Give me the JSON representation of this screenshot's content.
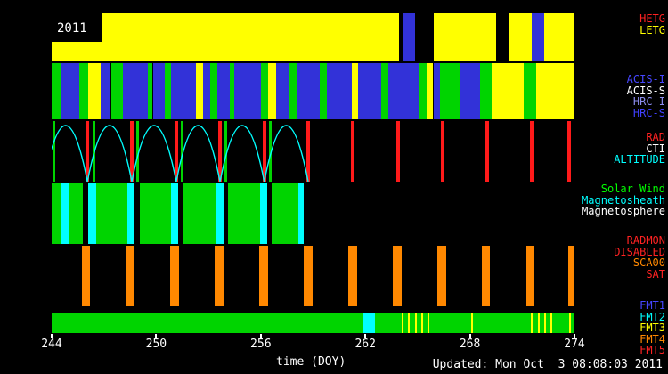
{
  "title_year": "2011",
  "footer": {
    "xlabel": "time (DOY)",
    "updated": "Updated: Mon Oct  3 08:08:03 2011"
  },
  "segment_colors": {
    "yellow": "#ffff00",
    "blue": "#3232d8",
    "green": "#00d400",
    "cyan": "#00ffff",
    "red": "#ff1a1a",
    "orange": "#ff8800",
    "white": "#ffffff"
  },
  "chart_data": {
    "type": "timeline-bands",
    "title": "2011",
    "xlabel": "time (DOY)",
    "x_axis": {
      "min": 244,
      "max": 274,
      "ticks": [
        244,
        250,
        256,
        262,
        268,
        274
      ]
    },
    "bands": [
      {
        "id": "gratings",
        "labels": [
          {
            "text": "HETG",
            "color": "#ff2222"
          },
          {
            "text": "LETG",
            "color": "#ffff00"
          }
        ],
        "segments": [
          [
            244.0,
            263.93,
            "yellow"
          ],
          [
            264.14,
            264.86,
            "blue"
          ],
          [
            265.93,
            269.5,
            "yellow"
          ],
          [
            270.22,
            271.54,
            "yellow"
          ],
          [
            271.54,
            272.26,
            "blue"
          ],
          [
            272.26,
            274.0,
            "yellow"
          ]
        ]
      },
      {
        "id": "instruments",
        "labels": [
          {
            "text": "ACIS-I",
            "color": "#4646ff"
          },
          {
            "text": "ACIS-S",
            "color": "#ffffff"
          },
          {
            "text": "HRC-I",
            "color": "#8c8cf0"
          },
          {
            "text": "HRC-S",
            "color": "#4040ff"
          }
        ],
        "segments": [
          [
            244.0,
            244.5,
            "green"
          ],
          [
            244.5,
            245.6,
            "blue"
          ],
          [
            245.6,
            246.1,
            "green"
          ],
          [
            246.1,
            246.8,
            "yellow"
          ],
          [
            246.8,
            247.4,
            "blue"
          ],
          [
            247.4,
            248.1,
            "green"
          ],
          [
            248.1,
            249.5,
            "blue"
          ],
          [
            249.5,
            249.8,
            "green"
          ],
          [
            249.8,
            250.5,
            "blue"
          ],
          [
            250.5,
            250.85,
            "green"
          ],
          [
            250.85,
            252.3,
            "blue"
          ],
          [
            252.3,
            252.7,
            "yellow"
          ],
          [
            252.7,
            253.1,
            "blue"
          ],
          [
            253.1,
            253.5,
            "green"
          ],
          [
            253.5,
            254.2,
            "blue"
          ],
          [
            254.2,
            254.5,
            "green"
          ],
          [
            254.5,
            256.0,
            "blue"
          ],
          [
            256.0,
            256.4,
            "green"
          ],
          [
            256.4,
            256.9,
            "yellow"
          ],
          [
            256.9,
            257.6,
            "blue"
          ],
          [
            257.6,
            258.05,
            "green"
          ],
          [
            258.05,
            259.4,
            "blue"
          ],
          [
            259.4,
            259.8,
            "green"
          ],
          [
            259.8,
            261.2,
            "blue"
          ],
          [
            261.2,
            261.6,
            "yellow"
          ],
          [
            261.6,
            262.9,
            "blue"
          ],
          [
            262.9,
            263.3,
            "green"
          ],
          [
            263.3,
            265.05,
            "blue"
          ],
          [
            265.05,
            265.5,
            "green"
          ],
          [
            265.5,
            265.9,
            "yellow"
          ],
          [
            265.9,
            266.3,
            "blue"
          ],
          [
            266.3,
            267.45,
            "green"
          ],
          [
            267.45,
            268.6,
            "blue"
          ],
          [
            268.6,
            269.25,
            "green"
          ],
          [
            269.25,
            271.1,
            "yellow"
          ],
          [
            271.1,
            271.8,
            "green"
          ],
          [
            271.8,
            274.0,
            "yellow"
          ]
        ]
      },
      {
        "id": "orbit",
        "labels": [
          {
            "text": "RAD",
            "color": "#ff2222"
          },
          {
            "text": "CTI",
            "color": "#ffffff"
          },
          {
            "text": "ALTITUDE",
            "color": "#00ffff"
          }
        ],
        "vlines": [
          {
            "color": "red",
            "w": 4,
            "xs": [
              246.05,
              248.6,
              251.15,
              253.66,
              256.2,
              258.72,
              261.27,
              263.88,
              266.44,
              269.0,
              271.55,
              273.7
            ]
          },
          {
            "color": "green",
            "w": 3,
            "xs": [
              244.15,
              246.4,
              248.95,
              251.5,
              254.0,
              256.55
            ]
          }
        ],
        "arcs": {
          "color": "cyan",
          "cusps": [
            243.55,
            246.05,
            248.6,
            251.15,
            253.66,
            256.2,
            258.72
          ]
        }
      },
      {
        "id": "wind",
        "labels": [
          {
            "text": "Solar Wind",
            "color": "#00ff00"
          },
          {
            "text": "Magnetosheath",
            "color": "#00ffff"
          },
          {
            "text": "Magnetosphere",
            "color": "#ffffff"
          }
        ],
        "segments": [
          [
            244.0,
            244.5,
            "green"
          ],
          [
            244.5,
            245.0,
            "cyan"
          ],
          [
            245.0,
            245.8,
            "green"
          ],
          [
            246.1,
            246.55,
            "cyan"
          ],
          [
            246.55,
            248.35,
            "green"
          ],
          [
            248.35,
            248.75,
            "cyan"
          ],
          [
            249.05,
            250.85,
            "green"
          ],
          [
            250.85,
            251.25,
            "cyan"
          ],
          [
            251.55,
            253.4,
            "green"
          ],
          [
            253.4,
            253.85,
            "cyan"
          ],
          [
            254.1,
            255.95,
            "green"
          ],
          [
            255.95,
            256.35,
            "cyan"
          ],
          [
            256.6,
            258.15,
            "green"
          ],
          [
            258.15,
            258.45,
            "cyan"
          ]
        ]
      },
      {
        "id": "radmon",
        "labels": [
          {
            "text": "RADMON",
            "color": "#ff2222"
          },
          {
            "text": "DISABLED",
            "color": "#ff2222"
          },
          {
            "text": "SCA00",
            "color": "#ff8800"
          },
          {
            "text": "SAT",
            "color": "#ff2222"
          }
        ],
        "segments": [
          [
            245.72,
            246.22,
            "orange"
          ],
          [
            248.27,
            248.77,
            "orange"
          ],
          [
            250.82,
            251.32,
            "orange"
          ],
          [
            253.37,
            253.87,
            "orange"
          ],
          [
            255.92,
            256.42,
            "orange"
          ],
          [
            258.47,
            258.97,
            "orange"
          ],
          [
            261.02,
            261.52,
            "orange"
          ],
          [
            263.57,
            264.07,
            "orange"
          ],
          [
            266.12,
            266.62,
            "orange"
          ],
          [
            268.67,
            269.17,
            "orange"
          ],
          [
            271.22,
            271.72,
            "orange"
          ],
          [
            273.62,
            274.0,
            "orange"
          ]
        ]
      },
      {
        "id": "telemetry",
        "labels": [
          {
            "text": "FMT1",
            "color": "#4646ff"
          },
          {
            "text": "FMT2",
            "color": "#00ffff"
          },
          {
            "text": "FMT3",
            "color": "#ffff00"
          },
          {
            "text": "FMT4",
            "color": "#ff8800"
          },
          {
            "text": "FMT5",
            "color": "#ff2222"
          }
        ],
        "segments": [
          [
            244.0,
            261.9,
            "green"
          ],
          [
            261.9,
            262.55,
            "cyan"
          ],
          [
            262.55,
            274.0,
            "green"
          ]
        ],
        "vlines": [
          {
            "color": "yellow",
            "w": 2,
            "xs": [
              264.12,
              264.5,
              264.88,
              265.26,
              265.64,
              268.1,
              271.55,
              271.95,
              272.3,
              272.65,
              273.75
            ]
          }
        ]
      }
    ]
  }
}
